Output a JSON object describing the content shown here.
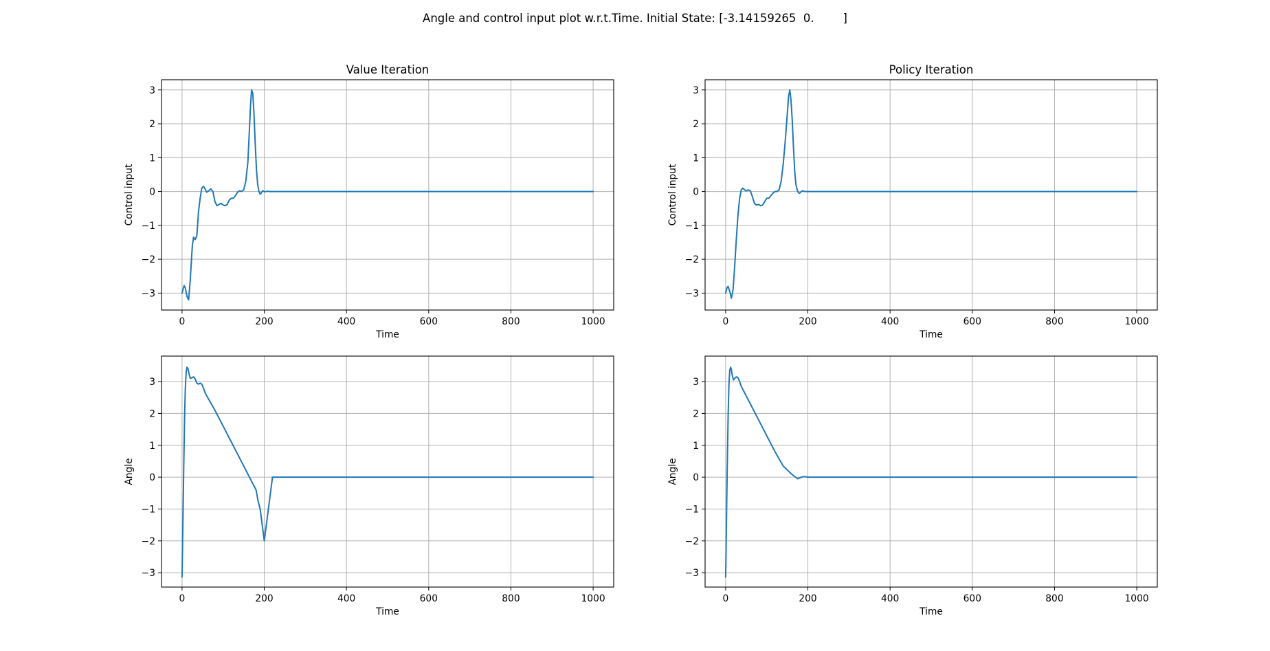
{
  "figure": {
    "suptitle": "Angle and control input plot w.r.t.Time. Initial State: [-3.14159265  0.        ]"
  },
  "colors": {
    "line": "#1f77b4",
    "grid": "#b0b0b0"
  },
  "chart_data": [
    {
      "type": "line",
      "title": "Value Iteration",
      "xlabel": "Time",
      "ylabel": "Control input",
      "grid": true,
      "xlim": [
        -50,
        1050
      ],
      "ylim": [
        -3.5,
        3.3
      ],
      "xticks": [
        0,
        200,
        400,
        600,
        800,
        1000
      ],
      "xtick_labels": [
        "0",
        "200",
        "400",
        "600",
        "800",
        "1000"
      ],
      "yticks": [
        -3,
        -2,
        -1,
        0,
        1,
        2,
        3
      ],
      "ytick_labels": [
        "−3",
        "−2",
        "−1",
        "0",
        "1",
        "2",
        "3"
      ],
      "series": [
        {
          "x": [
            0,
            2,
            5,
            8,
            12,
            16,
            20,
            25,
            28,
            32,
            36,
            40,
            44,
            48,
            52,
            55,
            60,
            65,
            70,
            75,
            80,
            85,
            90,
            95,
            100,
            105,
            110,
            115,
            120,
            125,
            130,
            135,
            140,
            145,
            150,
            155,
            160,
            163,
            166,
            169,
            172,
            175,
            178,
            181,
            184,
            187,
            190,
            193,
            196,
            199,
            202,
            205,
            208,
            212,
            215,
            220,
            250,
            300,
            400,
            500,
            600,
            700,
            800,
            900,
            1000
          ],
          "y": [
            -3.0,
            -2.9,
            -2.78,
            -2.85,
            -3.1,
            -3.2,
            -2.6,
            -1.6,
            -1.35,
            -1.42,
            -1.3,
            -0.6,
            -0.2,
            0.1,
            0.15,
            0.1,
            -0.02,
            0.02,
            0.08,
            0.0,
            -0.3,
            -0.42,
            -0.38,
            -0.35,
            -0.4,
            -0.42,
            -0.38,
            -0.25,
            -0.2,
            -0.2,
            -0.12,
            -0.02,
            0.02,
            0.0,
            0.05,
            0.3,
            0.85,
            1.6,
            2.4,
            3.0,
            2.9,
            2.3,
            1.4,
            0.65,
            0.2,
            0.0,
            -0.08,
            -0.04,
            0.02,
            0.01,
            -0.01,
            0.0,
            0.01,
            0.0,
            0.0,
            0.0,
            0.0,
            0.0,
            0.0,
            0.0,
            0.0,
            0.0,
            0.0,
            0.0,
            0.0
          ]
        }
      ]
    },
    {
      "type": "line",
      "title": "Policy Iteration",
      "xlabel": "Time",
      "ylabel": "Control input",
      "grid": true,
      "xlim": [
        -50,
        1050
      ],
      "ylim": [
        -3.5,
        3.3
      ],
      "xticks": [
        0,
        200,
        400,
        600,
        800,
        1000
      ],
      "xtick_labels": [
        "0",
        "200",
        "400",
        "600",
        "800",
        "1000"
      ],
      "yticks": [
        -3,
        -2,
        -1,
        0,
        1,
        2,
        3
      ],
      "ytick_labels": [
        "−3",
        "−2",
        "−1",
        "0",
        "1",
        "2",
        "3"
      ],
      "series": [
        {
          "x": [
            0,
            3,
            6,
            10,
            14,
            18,
            22,
            26,
            30,
            34,
            38,
            42,
            46,
            50,
            55,
            60,
            65,
            70,
            75,
            80,
            85,
            90,
            95,
            100,
            105,
            110,
            115,
            120,
            125,
            130,
            135,
            140,
            145,
            150,
            153,
            156,
            159,
            162,
            165,
            168,
            171,
            174,
            177,
            180,
            184,
            188,
            192,
            196,
            200,
            205,
            210,
            250,
            300,
            400,
            500,
            600,
            700,
            800,
            900,
            1000
          ],
          "y": [
            -3.0,
            -2.85,
            -2.8,
            -2.95,
            -3.15,
            -2.9,
            -2.2,
            -1.4,
            -0.7,
            -0.2,
            0.05,
            0.1,
            0.05,
            0.02,
            0.05,
            0.02,
            -0.15,
            -0.35,
            -0.4,
            -0.38,
            -0.42,
            -0.4,
            -0.3,
            -0.2,
            -0.2,
            -0.12,
            -0.05,
            0.0,
            0.0,
            0.05,
            0.3,
            0.8,
            1.5,
            2.3,
            2.8,
            3.0,
            2.7,
            2.1,
            1.3,
            0.6,
            0.2,
            0.05,
            -0.04,
            -0.05,
            0.0,
            0.02,
            0.0,
            0.0,
            0.0,
            0.0,
            0.0,
            0.0,
            0.0,
            0.0,
            0.0,
            0.0,
            0.0,
            0.0,
            0.0,
            0.0
          ]
        }
      ]
    },
    {
      "type": "line",
      "title": "",
      "xlabel": "Time",
      "ylabel": "Angle",
      "grid": true,
      "xlim": [
        -50,
        1050
      ],
      "ylim": [
        -3.45,
        3.8
      ],
      "xticks": [
        0,
        200,
        400,
        600,
        800,
        1000
      ],
      "xtick_labels": [
        "0",
        "200",
        "400",
        "600",
        "800",
        "1000"
      ],
      "yticks": [
        -3,
        -2,
        -1,
        0,
        1,
        2,
        3
      ],
      "ytick_labels": [
        "−3",
        "−2",
        "−1",
        "0",
        "1",
        "2",
        "3"
      ],
      "series": [
        {
          "x": [
            0,
            2,
            4,
            6,
            8,
            10,
            12,
            14,
            17,
            20,
            24,
            28,
            32,
            36,
            40,
            44,
            48,
            52,
            56,
            60,
            80,
            100,
            120,
            140,
            160,
            180,
            185,
            190,
            195,
            200,
            220,
            250,
            300,
            400,
            500,
            600,
            700,
            800,
            900,
            1000
          ],
          "y": [
            -3.14,
            -1.5,
            0.2,
            1.8,
            2.8,
            3.3,
            3.45,
            3.42,
            3.25,
            3.1,
            3.12,
            3.15,
            3.08,
            2.95,
            2.92,
            2.95,
            2.92,
            2.8,
            2.65,
            2.55,
            2.1,
            1.6,
            1.1,
            0.6,
            0.1,
            -0.4,
            -0.75,
            -1.0,
            -1.5,
            -2.0,
            0.0,
            0.0,
            0.0,
            0.0,
            0.0,
            0.0,
            0.0,
            0.0,
            0.0,
            0.0
          ]
        }
      ]
    },
    {
      "type": "line",
      "title": "",
      "xlabel": "Time",
      "ylabel": "Angle",
      "grid": true,
      "xlim": [
        -50,
        1050
      ],
      "ylim": [
        -3.45,
        3.8
      ],
      "xticks": [
        0,
        200,
        400,
        600,
        800,
        1000
      ],
      "xtick_labels": [
        "0",
        "200",
        "400",
        "600",
        "800",
        "1000"
      ],
      "yticks": [
        -3,
        -2,
        -1,
        0,
        1,
        2,
        3
      ],
      "ytick_labels": [
        "−3",
        "−2",
        "−1",
        "0",
        "1",
        "2",
        "3"
      ],
      "series": [
        {
          "x": [
            0,
            2,
            4,
            6,
            8,
            10,
            12,
            14,
            16,
            19,
            22,
            26,
            30,
            34,
            38,
            42,
            46,
            50,
            60,
            80,
            100,
            120,
            140,
            160,
            170,
            175,
            180,
            185,
            190,
            200,
            220,
            250,
            300,
            400,
            500,
            600,
            700,
            800,
            900,
            1000
          ],
          "y": [
            -3.14,
            -1.4,
            0.4,
            1.9,
            2.9,
            3.35,
            3.45,
            3.38,
            3.2,
            3.05,
            3.1,
            3.15,
            3.12,
            3.0,
            2.85,
            2.75,
            2.65,
            2.55,
            2.3,
            1.8,
            1.3,
            0.8,
            0.35,
            0.1,
            0.0,
            -0.05,
            -0.02,
            0.0,
            0.02,
            0.0,
            0.0,
            0.0,
            0.0,
            0.0,
            0.0,
            0.0,
            0.0,
            0.0,
            0.0,
            0.0
          ]
        }
      ]
    }
  ]
}
